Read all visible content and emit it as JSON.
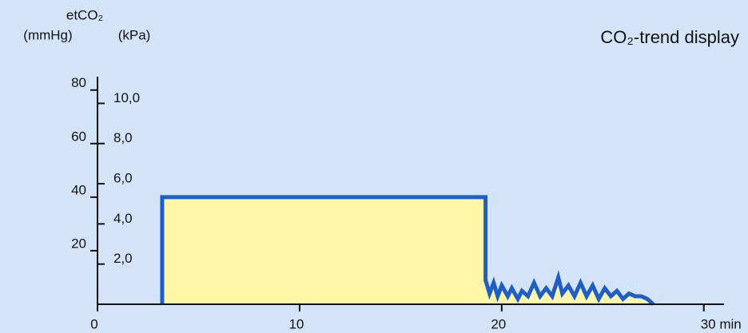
{
  "chart_data": {
    "type": "area",
    "title": "CO₂-trend display",
    "y_axis_title": "etCO₂",
    "y_unit_label": "(mmHg)",
    "y2_unit_label": "(kPa)",
    "xlim": [
      0,
      31
    ],
    "xticks": [
      0,
      10,
      20,
      {
        "value": 30,
        "label": "30 min"
      }
    ],
    "ylim": [
      0,
      85
    ],
    "yticks": [
      20,
      40,
      60,
      80
    ],
    "y2lim": [
      0,
      11.33
    ],
    "y2ticks": [
      {
        "value": 2,
        "label": "2,0"
      },
      {
        "value": 4,
        "label": "4,0"
      },
      {
        "value": 6,
        "label": "6,0"
      },
      {
        "value": 8,
        "label": "8,0"
      },
      {
        "value": 10,
        "label": "10,0"
      }
    ],
    "series": [
      {
        "color": "#1f5fc4",
        "fill": "#fff6a6",
        "x": [
          3.2,
          3.2,
          19.2,
          19.2,
          19.4,
          19.6,
          19.8,
          20.0,
          20.3,
          20.5,
          20.8,
          21.0,
          21.3,
          21.6,
          21.9,
          22.2,
          22.5,
          22.8,
          23.0,
          23.3,
          23.6,
          23.9,
          24.2,
          24.5,
          24.8,
          25.1,
          25.4,
          25.7,
          26.0,
          26.3,
          26.6,
          26.9,
          27.2,
          27.5
        ],
        "values": [
          0,
          40,
          40,
          9,
          4,
          8,
          3,
          7,
          3,
          6,
          2,
          5,
          3,
          8,
          3,
          6,
          3,
          10,
          4,
          7,
          3,
          8,
          3,
          7,
          2,
          6,
          3,
          5,
          2,
          4,
          3,
          3,
          2,
          0
        ]
      }
    ]
  }
}
